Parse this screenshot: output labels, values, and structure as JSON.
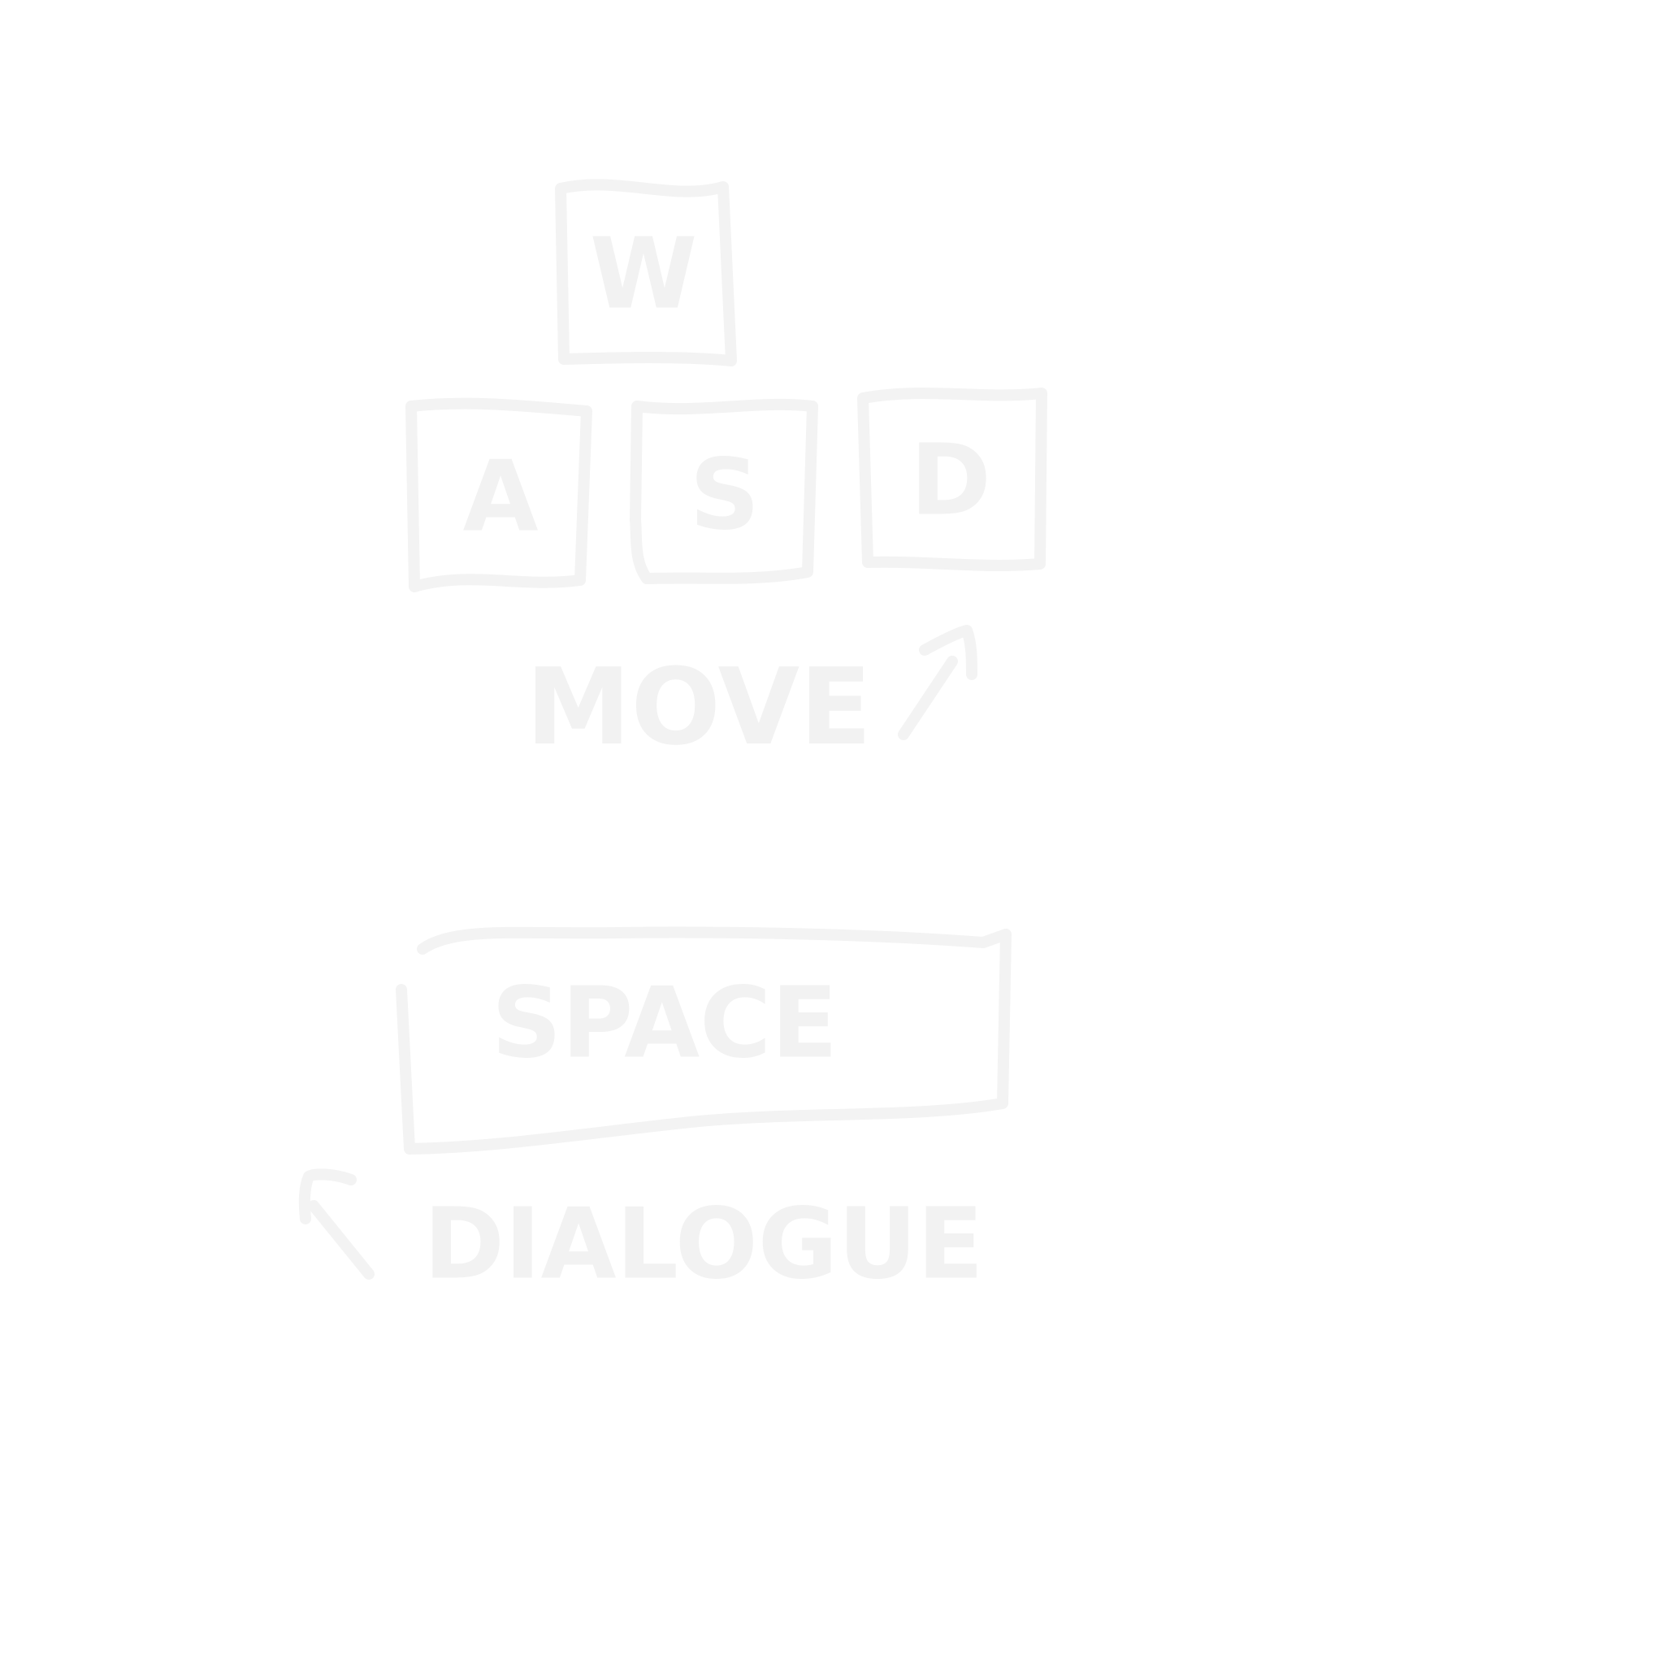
{
  "keys": {
    "w": {
      "label": "W"
    },
    "a": {
      "label": "A"
    },
    "s": {
      "label": "S"
    },
    "d": {
      "label": "D"
    },
    "space": {
      "label": "SPACE"
    }
  },
  "captions": {
    "move": "MOVE",
    "dialogue": "DIALOGUE"
  },
  "colors": {
    "background": "#ffffff",
    "ink": "#f3f3f3"
  },
  "icons": {
    "move_arrow": "arrow-up-right-icon",
    "dialogue_arrow": "arrow-up-left-icon"
  }
}
